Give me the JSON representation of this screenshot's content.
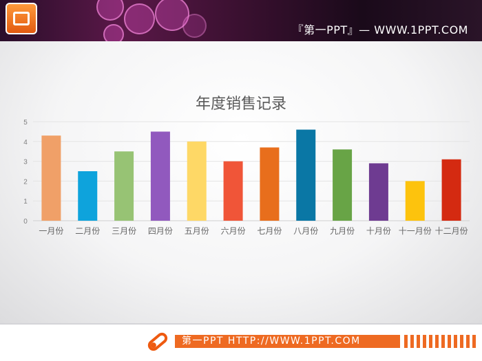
{
  "header": {
    "site_title": "『第一PPT』— WWW.1PPT.COM",
    "logo_icon": "powerpoint-icon"
  },
  "footer": {
    "text": "第一PPT HTTP://WWW.1PPT.COM",
    "icon": "pen-icon",
    "accent": "#ee6a22"
  },
  "chart_data": {
    "type": "bar",
    "title": "年度销售记录",
    "categories": [
      "一月份",
      "二月份",
      "三月份",
      "四月份",
      "五月份",
      "六月份",
      "七月份",
      "八月份",
      "九月份",
      "十月份",
      "十一月份",
      "十二月份"
    ],
    "values": [
      4.3,
      2.5,
      3.5,
      4.5,
      4.0,
      3.0,
      3.7,
      4.6,
      3.6,
      2.9,
      2.0,
      3.1
    ],
    "colors": [
      "#f0a068",
      "#0ea3dc",
      "#97c374",
      "#9159be",
      "#fed866",
      "#f05538",
      "#e86e1c",
      "#0a77a5",
      "#68a446",
      "#6e3b91",
      "#fdc30d",
      "#d42a11"
    ],
    "ylim": [
      0,
      5
    ],
    "yticks": [
      0,
      1,
      2,
      3,
      4,
      5
    ],
    "grid": true,
    "legend": "none"
  }
}
